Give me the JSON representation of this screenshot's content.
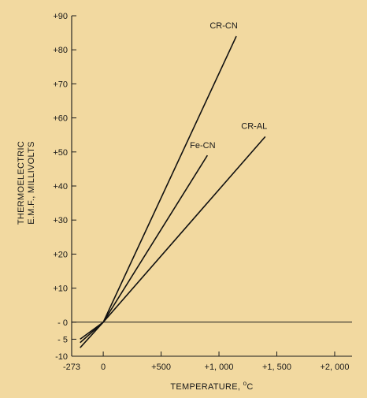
{
  "colors": {
    "background": "#f2d9a0",
    "ink": "#1a1a1a"
  },
  "chart_data": {
    "type": "line",
    "xlabel": "TEMPERATURE, ",
    "xlabel_unit": "C",
    "xlabel_degree": "o",
    "ylabel_line1": "THERMOELECTRIC",
    "ylabel_line2": "E.M.F., MILLIVOLTS",
    "xlim": [
      -273,
      2150
    ],
    "ylim": [
      -10,
      90
    ],
    "x_ticks": [
      {
        "value": -273,
        "label": "-273"
      },
      {
        "value": 0,
        "label": "0"
      },
      {
        "value": 500,
        "label": "+500"
      },
      {
        "value": 1000,
        "label": "+1, 000"
      },
      {
        "value": 1500,
        "label": "+1, 500"
      },
      {
        "value": 2000,
        "label": "+2, 000"
      }
    ],
    "y_ticks": [
      {
        "value": 90,
        "label": "+90"
      },
      {
        "value": 80,
        "label": "+80"
      },
      {
        "value": 70,
        "label": "+70"
      },
      {
        "value": 60,
        "label": "+60"
      },
      {
        "value": 50,
        "label": "+50"
      },
      {
        "value": 40,
        "label": "+40"
      },
      {
        "value": 30,
        "label": "+30"
      },
      {
        "value": 20,
        "label": "+20"
      },
      {
        "value": 10,
        "label": "+10"
      },
      {
        "value": 0,
        "label": "- 0"
      },
      {
        "value": -5,
        "label": "- 5"
      },
      {
        "value": -10,
        "label": "-10"
      }
    ],
    "grid": false,
    "series": [
      {
        "name": "CR-CN",
        "x": [
          -200,
          0,
          1150
        ],
        "y": [
          -5,
          0,
          84
        ]
      },
      {
        "name": "Fe-CN",
        "x": [
          -200,
          0,
          900
        ],
        "y": [
          -7.5,
          0,
          49
        ]
      },
      {
        "name": "CR-AL",
        "x": [
          -200,
          0,
          1400
        ],
        "y": [
          -6,
          0,
          54.5
        ]
      }
    ]
  }
}
